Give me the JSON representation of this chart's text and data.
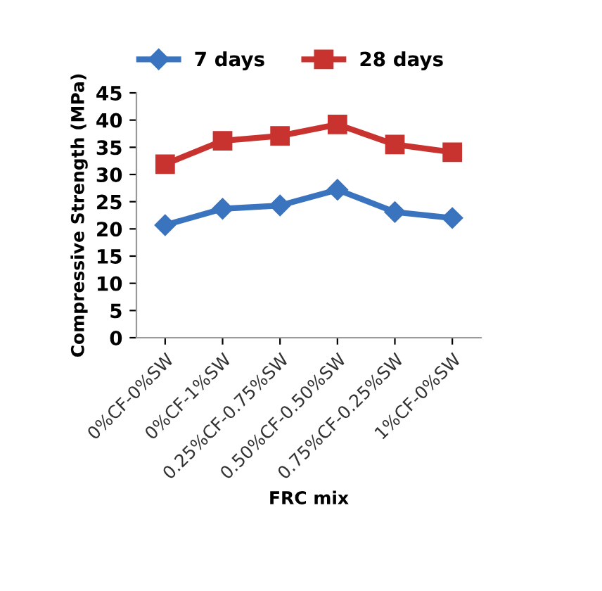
{
  "chart_data": {
    "type": "line",
    "xlabel": "FRC mix",
    "ylabel": "Compressive Strength (MPa)",
    "categories": [
      "0%CF-0%SW",
      "0%CF-1%SW",
      "0.25%CF-0.75%SW",
      "0.50%CF-0.50%SW",
      "0.75%CF-0.25%SW",
      "1%CF-0%SW"
    ],
    "series": [
      {
        "name": "7 days",
        "color": "#3a73be",
        "marker": "diamond",
        "values": [
          20.7,
          23.7,
          24.3,
          27.2,
          23.1,
          22.0
        ]
      },
      {
        "name": "28 days",
        "color": "#c8332f",
        "marker": "square",
        "values": [
          31.9,
          36.2,
          37.1,
          39.2,
          35.5,
          34.1
        ]
      }
    ],
    "ylim": [
      0,
      45
    ],
    "yticks": [
      0,
      5,
      10,
      15,
      20,
      25,
      30,
      35,
      40,
      45
    ],
    "grid": false,
    "legend": "top"
  }
}
